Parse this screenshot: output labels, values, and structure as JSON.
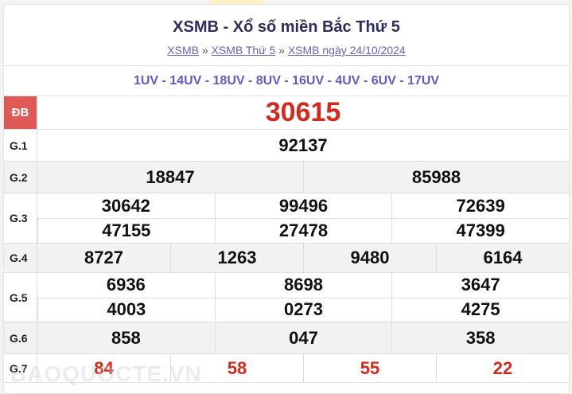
{
  "header": {
    "title": "XSMB - Xổ số miền Bắc Thứ 5",
    "breadcrumb": [
      {
        "label": "XSMB"
      },
      {
        "label": "XSMB Thứ 5"
      },
      {
        "label": "XSMB ngày 24/10/2024"
      }
    ],
    "separator": "»"
  },
  "codes": "1UV - 14UV - 18UV - 8UV - 16UV - 4UV - 6UV - 17UV",
  "prizes": [
    {
      "label": "ĐB",
      "numbers": [
        "30615"
      ]
    },
    {
      "label": "G.1",
      "numbers": [
        "92137"
      ]
    },
    {
      "label": "G.2",
      "numbers": [
        "18847",
        "85988"
      ]
    },
    {
      "label": "G.3",
      "numbers": [
        "30642",
        "99496",
        "72639",
        "47155",
        "27478",
        "47399"
      ]
    },
    {
      "label": "G.4",
      "numbers": [
        "8727",
        "1263",
        "9480",
        "6164"
      ]
    },
    {
      "label": "G.5",
      "numbers": [
        "6936",
        "8698",
        "3647",
        "4003",
        "0273",
        "4275"
      ]
    },
    {
      "label": "G.6",
      "numbers": [
        "858",
        "047",
        "358"
      ]
    },
    {
      "label": "G.7",
      "numbers": [
        "84",
        "58",
        "55",
        "22"
      ]
    }
  ],
  "watermark": "BAOQUOCTE.VN",
  "colors": {
    "special_label_bg": "#dd5a57",
    "red_numbers": "#d22a1f",
    "codes": "#6358c4"
  }
}
